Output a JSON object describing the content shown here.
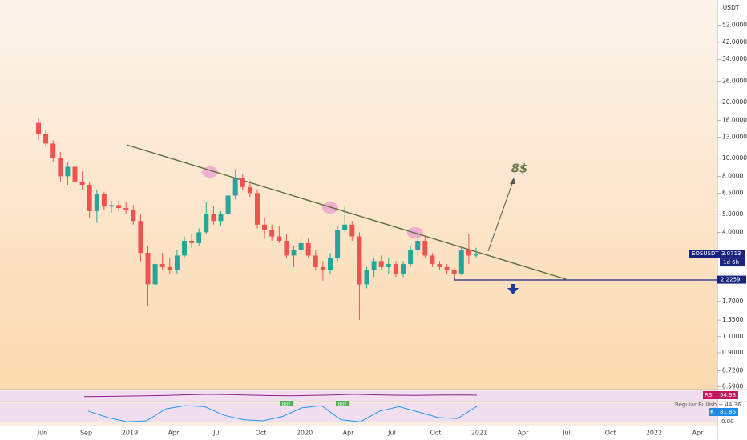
{
  "chart_data": {
    "type": "candlestick",
    "log_scale": true,
    "currency": "USDT",
    "ylim": [
      0.571,
      70.9
    ],
    "yticks": [
      {
        "value": 52,
        "label": "52.0000"
      },
      {
        "value": 42,
        "label": "42.0000"
      },
      {
        "value": 34,
        "label": "34.0000"
      },
      {
        "value": 26,
        "label": "26.0000"
      },
      {
        "value": 20,
        "label": "20.0000"
      },
      {
        "value": 16,
        "label": "16.0000"
      },
      {
        "value": 13,
        "label": "13.0000"
      },
      {
        "value": 10,
        "label": "10.0000"
      },
      {
        "value": 8,
        "label": "8.0000"
      },
      {
        "value": 6.5,
        "label": "6.5000"
      },
      {
        "value": 5,
        "label": "5.0000"
      },
      {
        "value": 4,
        "label": "4.0000"
      },
      {
        "value": 1.7,
        "label": "1.7000"
      },
      {
        "value": 1.35,
        "label": "1.3500"
      },
      {
        "value": 1.1,
        "label": "1.1000"
      },
      {
        "value": 0.9,
        "label": "0.9000"
      },
      {
        "value": 0.72,
        "label": "0.7200"
      },
      {
        "value": 0.59,
        "label": "0.5900"
      }
    ],
    "xticks": [
      "Jun",
      "Sep",
      "2019",
      "Apr",
      "Jul",
      "Oct",
      "2020",
      "Apr",
      "Jul",
      "Oct",
      "2021",
      "Apr",
      "Jul",
      "Oct",
      "2022",
      "Apr"
    ],
    "up_color": "#26a69a",
    "down_color": "#ef5350",
    "values": [
      [
        15.5,
        16.5,
        12.5,
        13.5
      ],
      [
        13.5,
        14.2,
        11.5,
        12.0
      ],
      [
        12.0,
        12.5,
        9.5,
        10.0
      ],
      [
        10.0,
        10.8,
        7.5,
        8.0
      ],
      [
        8.0,
        9.5,
        7.2,
        9.0
      ],
      [
        9.0,
        9.6,
        7.0,
        7.5
      ],
      [
        7.5,
        8.5,
        6.8,
        7.2
      ],
      [
        7.2,
        7.5,
        4.8,
        5.2
      ],
      [
        5.2,
        6.8,
        4.5,
        6.4
      ],
      [
        6.4,
        6.6,
        5.3,
        5.5
      ],
      [
        5.5,
        5.9,
        5.1,
        5.6
      ],
      [
        5.6,
        5.9,
        5.2,
        5.4
      ],
      [
        5.4,
        5.8,
        5.0,
        5.3
      ],
      [
        5.3,
        5.6,
        4.4,
        4.6
      ],
      [
        4.6,
        5.0,
        2.8,
        3.1
      ],
      [
        3.1,
        3.4,
        1.6,
        2.1
      ],
      [
        2.1,
        2.9,
        2.0,
        2.7
      ],
      [
        2.7,
        3.1,
        2.5,
        2.6
      ],
      [
        2.6,
        2.9,
        2.4,
        2.5
      ],
      [
        2.5,
        3.2,
        2.4,
        3.0
      ],
      [
        3.0,
        3.8,
        2.9,
        3.6
      ],
      [
        3.6,
        3.9,
        3.3,
        3.5
      ],
      [
        3.5,
        4.2,
        3.4,
        4.0
      ],
      [
        4.0,
        5.8,
        3.9,
        5.0
      ],
      [
        5.0,
        5.5,
        4.4,
        4.6
      ],
      [
        4.6,
        5.2,
        4.3,
        5.0
      ],
      [
        5.0,
        6.6,
        4.9,
        6.3
      ],
      [
        6.3,
        8.7,
        6.0,
        7.8
      ],
      [
        7.8,
        8.2,
        6.7,
        7.0
      ],
      [
        7.0,
        7.6,
        6.2,
        6.5
      ],
      [
        6.5,
        6.8,
        4.2,
        4.4
      ],
      [
        4.4,
        4.8,
        3.7,
        4.1
      ],
      [
        4.1,
        4.4,
        3.6,
        3.8
      ],
      [
        3.8,
        4.3,
        3.5,
        3.6
      ],
      [
        3.6,
        3.9,
        2.9,
        3.0
      ],
      [
        3.0,
        3.4,
        2.6,
        3.2
      ],
      [
        3.2,
        3.8,
        3.0,
        3.5
      ],
      [
        3.5,
        3.7,
        2.9,
        3.0
      ],
      [
        3.0,
        3.2,
        2.5,
        2.6
      ],
      [
        2.6,
        2.8,
        2.2,
        2.5
      ],
      [
        2.5,
        3.1,
        2.4,
        2.9
      ],
      [
        2.9,
        4.3,
        2.8,
        4.1
      ],
      [
        4.1,
        5.5,
        4.0,
        4.4
      ],
      [
        4.4,
        4.6,
        3.6,
        3.8
      ],
      [
        3.8,
        4.0,
        1.35,
        2.1
      ],
      [
        2.1,
        2.6,
        2.0,
        2.5
      ],
      [
        2.5,
        2.9,
        2.3,
        2.8
      ],
      [
        2.8,
        3.0,
        2.5,
        2.6
      ],
      [
        2.6,
        2.9,
        2.4,
        2.7
      ],
      [
        2.7,
        2.8,
        2.3,
        2.4
      ],
      [
        2.4,
        2.8,
        2.3,
        2.7
      ],
      [
        2.7,
        3.4,
        2.6,
        3.2
      ],
      [
        3.2,
        4.0,
        3.0,
        3.6
      ],
      [
        3.6,
        3.8,
        2.9,
        3.0
      ],
      [
        3.0,
        3.1,
        2.6,
        2.7
      ],
      [
        2.7,
        2.8,
        2.5,
        2.6
      ],
      [
        2.6,
        2.7,
        2.4,
        2.5
      ],
      [
        2.5,
        2.6,
        2.3,
        2.4
      ],
      [
        2.4,
        3.3,
        2.35,
        3.2
      ],
      [
        3.2,
        3.9,
        2.7,
        3.0
      ],
      [
        3.0,
        3.3,
        2.9,
        3.07
      ]
    ],
    "annotation": "8$",
    "price_label": {
      "symbol": "EOSUSDT",
      "price": "3.0713",
      "countdown": "1d 6h"
    },
    "support_label": "2.2259",
    "rsi": {
      "name": "RSI",
      "value_label": "54.98",
      "ylim": [
        0,
        100
      ],
      "values": [
        40,
        42,
        45,
        48,
        52,
        58,
        62,
        60,
        55,
        50,
        48,
        52,
        56,
        62,
        58,
        54,
        52,
        55,
        56,
        55
      ],
      "divergence_labels": [
        "Bull",
        "Bull"
      ],
      "legend": "Regular Bullish + 44.36"
    },
    "stoch": {
      "name": "K",
      "value_label": "81.86",
      "ylim": [
        0,
        100
      ],
      "zero_label": "0.00",
      "values": [
        60,
        30,
        10,
        15,
        70,
        85,
        80,
        40,
        20,
        15,
        35,
        75,
        85,
        20,
        10,
        60,
        80,
        55,
        30,
        25,
        82
      ]
    }
  }
}
